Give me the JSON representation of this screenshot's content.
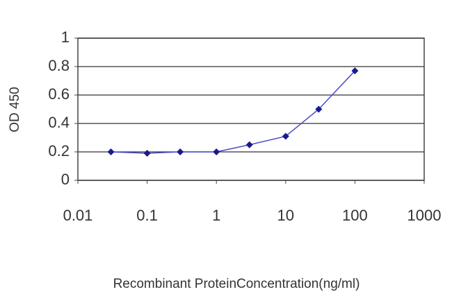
{
  "chart_data": {
    "type": "line",
    "xlabel": "Recombinant ProteinConcentration(ng/ml)",
    "ylabel": "OD 450",
    "x": [
      0.03,
      0.1,
      0.3,
      1,
      3,
      10,
      30,
      100
    ],
    "series": [
      {
        "color": "#1a1a8c",
        "values": [
          0.2,
          0.19,
          0.2,
          0.2,
          0.25,
          0.31,
          0.5,
          0.77
        ]
      }
    ],
    "xscale": "log",
    "xlim": [
      0.01,
      1000
    ],
    "xticks": [
      0.01,
      0.1,
      1,
      10,
      100,
      1000
    ],
    "ylim": [
      0,
      1
    ],
    "yticks": [
      0,
      0.2,
      0.4,
      0.6,
      0.8,
      1
    ],
    "grid": true
  }
}
